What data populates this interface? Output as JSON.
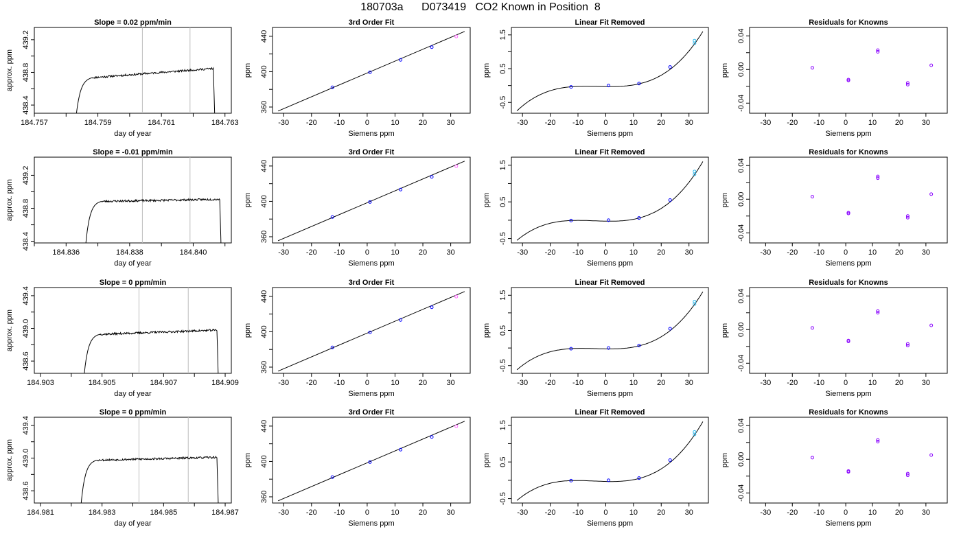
{
  "title": "180703a      D073419   CO2 Known in Position  8",
  "colors": {
    "blue": "#0000ff",
    "cyan": "#33bbee",
    "purple": "#8800ff",
    "magenta": "#ff66ff",
    "grey": "#bbbbbb",
    "line": "#000000"
  },
  "chart_data": [
    {
      "type": "line",
      "panel": "time",
      "row": 0,
      "title": "Slope =  0.02  ppm/min",
      "xlabel": "day of year",
      "ylabel": "approx. ppm",
      "xlim": [
        184.757,
        184.7632
      ],
      "ylim": [
        438.3,
        439.35
      ],
      "xticks": [
        184.757,
        184.758,
        184.759,
        184.76,
        184.761,
        184.762,
        184.763
      ],
      "xtick_labels": [
        "184.757",
        "",
        "184.759",
        "",
        "184.761",
        "",
        "184.763"
      ],
      "yticks": [
        438.4,
        438.6,
        438.8,
        439.0,
        439.2
      ],
      "ytick_labels": [
        "438.4",
        "",
        "438.8",
        "",
        "439.2"
      ],
      "vlines": [
        184.7604,
        184.7619
      ],
      "trace": {
        "start": 184.7583,
        "end": 184.7627,
        "plateau_start": 438.72,
        "plateau_end": 438.85,
        "noise": 0.012,
        "seed": 11
      }
    },
    {
      "type": "line",
      "panel": "time",
      "row": 1,
      "title": "Slope =  -0.01  ppm/min",
      "xlabel": "day of year",
      "ylabel": "approx. ppm",
      "xlim": [
        184.835,
        184.8412
      ],
      "ylim": [
        438.38,
        439.42
      ],
      "xticks": [
        184.835,
        184.836,
        184.837,
        184.838,
        184.839,
        184.84,
        184.841
      ],
      "xtick_labels": [
        "",
        "184.836",
        "",
        "184.838",
        "",
        "184.840",
        ""
      ],
      "yticks": [
        438.4,
        438.6,
        438.8,
        439.0,
        439.2
      ],
      "ytick_labels": [
        "438.4",
        "",
        "438.8",
        "",
        "439.2"
      ],
      "vlines": [
        184.8384,
        184.8399
      ],
      "trace": {
        "start": 184.8366,
        "end": 184.8409,
        "plateau_start": 438.88,
        "plateau_end": 438.91,
        "noise": 0.012,
        "seed": 23
      }
    },
    {
      "type": "line",
      "panel": "time",
      "row": 2,
      "title": "Slope =  0  ppm/min",
      "xlabel": "day of year",
      "ylabel": "approx. ppm",
      "xlim": [
        184.9028,
        184.9092
      ],
      "ylim": [
        438.45,
        439.5
      ],
      "xticks": [
        184.903,
        184.904,
        184.905,
        184.906,
        184.907,
        184.908,
        184.909
      ],
      "xtick_labels": [
        "184.903",
        "",
        "184.905",
        "",
        "184.907",
        "",
        "184.909"
      ],
      "yticks": [
        438.6,
        438.8,
        439.0,
        439.2,
        439.4
      ],
      "ytick_labels": [
        "438.6",
        "",
        "439.0",
        "",
        "439.4"
      ],
      "vlines": [
        184.9062,
        184.9078
      ],
      "trace": {
        "start": 184.9044,
        "end": 184.9088,
        "plateau_start": 438.92,
        "plateau_end": 438.98,
        "noise": 0.012,
        "seed": 37
      }
    },
    {
      "type": "line",
      "panel": "time",
      "row": 3,
      "title": "Slope =  0  ppm/min",
      "xlabel": "day of year",
      "ylabel": "approx. ppm",
      "xlim": [
        184.9808,
        184.9872
      ],
      "ylim": [
        438.45,
        439.5
      ],
      "xticks": [
        184.981,
        184.982,
        184.983,
        184.984,
        184.985,
        184.986,
        184.987
      ],
      "xtick_labels": [
        "184.981",
        "",
        "184.983",
        "",
        "184.985",
        "",
        "184.987"
      ],
      "yticks": [
        438.6,
        438.8,
        439.0,
        439.2,
        439.4
      ],
      "ytick_labels": [
        "438.6",
        "",
        "439.0",
        "",
        "439.4"
      ],
      "vlines": [
        184.9842,
        184.9858
      ],
      "trace": {
        "start": 184.9823,
        "end": 184.9868,
        "plateau_start": 438.97,
        "plateau_end": 439.01,
        "noise": 0.012,
        "seed": 53
      }
    },
    {
      "type": "scatter",
      "panel": "fit",
      "row": 0,
      "title": "3rd Order Fit",
      "xlabel": "Siemens ppm",
      "ylabel": "ppm",
      "xlim": [
        -34,
        37
      ],
      "ylim": [
        353,
        450
      ],
      "xticks": [
        -30,
        -20,
        -10,
        0,
        10,
        20,
        30
      ],
      "xtick_labels": [
        "-30",
        "-20",
        "-10",
        "0",
        "10",
        "20",
        "30"
      ],
      "yticks": [
        360,
        380,
        400,
        420,
        440
      ],
      "ytick_labels": [
        "360",
        "",
        "400",
        "",
        "440"
      ],
      "line": {
        "x": [
          -32,
          35
        ],
        "y": [
          355.5,
          445.5
        ]
      },
      "points": {
        "x": [
          -12.5,
          1,
          12,
          23.2,
          32
        ],
        "y": [
          382.3,
          399.3,
          413.3,
          427.7,
          439.7
        ]
      }
    },
    {
      "type": "scatter",
      "panel": "fit",
      "row": 1,
      "title": "3rd Order Fit",
      "xlabel": "Siemens ppm",
      "ylabel": "ppm",
      "xlim": [
        -34,
        37
      ],
      "ylim": [
        353,
        450
      ],
      "xticks": [
        -30,
        -20,
        -10,
        0,
        10,
        20,
        30
      ],
      "xtick_labels": [
        "-30",
        "-20",
        "-10",
        "0",
        "10",
        "20",
        "30"
      ],
      "yticks": [
        360,
        380,
        400,
        420,
        440
      ],
      "ytick_labels": [
        "360",
        "",
        "400",
        "",
        "440"
      ],
      "line": {
        "x": [
          -32,
          35
        ],
        "y": [
          355.5,
          445.5
        ]
      },
      "points": {
        "x": [
          -12.5,
          1,
          12,
          23.2,
          32
        ],
        "y": [
          382.3,
          399.3,
          413.3,
          427.7,
          439.7
        ]
      }
    },
    {
      "type": "scatter",
      "panel": "fit",
      "row": 2,
      "title": "3rd Order Fit",
      "xlabel": "Siemens ppm",
      "ylabel": "ppm",
      "xlim": [
        -34,
        37
      ],
      "ylim": [
        353,
        450
      ],
      "xticks": [
        -30,
        -20,
        -10,
        0,
        10,
        20,
        30
      ],
      "xtick_labels": [
        "-30",
        "-20",
        "-10",
        "0",
        "10",
        "20",
        "30"
      ],
      "yticks": [
        360,
        380,
        400,
        420,
        440
      ],
      "ytick_labels": [
        "360",
        "",
        "400",
        "",
        "440"
      ],
      "line": {
        "x": [
          -32,
          35
        ],
        "y": [
          355.5,
          445.5
        ]
      },
      "points": {
        "x": [
          -12.5,
          1,
          12,
          23.2,
          32
        ],
        "y": [
          382.3,
          399.3,
          413.3,
          427.7,
          439.7
        ]
      }
    },
    {
      "type": "scatter",
      "panel": "fit",
      "row": 3,
      "title": "3rd Order Fit",
      "xlabel": "Siemens ppm",
      "ylabel": "ppm",
      "xlim": [
        -34,
        37
      ],
      "ylim": [
        353,
        450
      ],
      "xticks": [
        -30,
        -20,
        -10,
        0,
        10,
        20,
        30
      ],
      "xtick_labels": [
        "-30",
        "-20",
        "-10",
        "0",
        "10",
        "20",
        "30"
      ],
      "yticks": [
        360,
        380,
        400,
        420,
        440
      ],
      "ytick_labels": [
        "360",
        "",
        "400",
        "",
        "440"
      ],
      "line": {
        "x": [
          -32,
          35
        ],
        "y": [
          355.5,
          445.5
        ]
      },
      "points": {
        "x": [
          -12.5,
          1,
          12,
          23.2,
          32
        ],
        "y": [
          382.3,
          399.3,
          413.3,
          427.7,
          439.7
        ]
      }
    },
    {
      "type": "scatter",
      "panel": "linear",
      "row": 0,
      "title": "Linear Fit Removed",
      "xlabel": "Siemens ppm",
      "ylabel": "ppm",
      "xlim": [
        -34,
        37
      ],
      "ylim": [
        -0.82,
        1.72
      ],
      "xticks": [
        -30,
        -20,
        -10,
        0,
        10,
        20,
        30
      ],
      "xtick_labels": [
        "-30",
        "-20",
        "-10",
        "0",
        "10",
        "20",
        "30"
      ],
      "yticks": [
        -0.5,
        0,
        0.5,
        1.0,
        1.5
      ],
      "ytick_labels": [
        "-0.5",
        "",
        "0.5",
        "",
        "1.5"
      ],
      "curve": {
        "x0": -32,
        "x1": 35,
        "y0": -0.75,
        "y1": 1.6,
        "xa": -13,
        "ya": -0.04,
        "xb": 12,
        "yb": 0.05
      },
      "points": {
        "x": [
          -12.5,
          1,
          12,
          23.2,
          32,
          32
        ],
        "y": [
          -0.04,
          0.0,
          0.06,
          0.55,
          1.25,
          1.33
        ]
      }
    },
    {
      "type": "scatter",
      "panel": "linear",
      "row": 1,
      "title": "Linear Fit Removed",
      "xlabel": "Siemens ppm",
      "ylabel": "ppm",
      "xlim": [
        -34,
        37
      ],
      "ylim": [
        -0.62,
        1.72
      ],
      "xticks": [
        -30,
        -20,
        -10,
        0,
        10,
        20,
        30
      ],
      "xtick_labels": [
        "-30",
        "-20",
        "-10",
        "0",
        "10",
        "20",
        "30"
      ],
      "yticks": [
        -0.5,
        0,
        0.5,
        1.0,
        1.5
      ],
      "ytick_labels": [
        "-0.5",
        "",
        "0.5",
        "",
        "1.5"
      ],
      "curve": {
        "x0": -32,
        "x1": 35,
        "y0": -0.55,
        "y1": 1.6,
        "xa": -13,
        "ya": -0.01,
        "xb": 12,
        "yb": 0.06
      },
      "points": {
        "x": [
          -12.5,
          1,
          12,
          23.2,
          32,
          32
        ],
        "y": [
          -0.01,
          0.0,
          0.06,
          0.55,
          1.25,
          1.33
        ]
      }
    },
    {
      "type": "scatter",
      "panel": "linear",
      "row": 2,
      "title": "Linear Fit Removed",
      "xlabel": "Siemens ppm",
      "ylabel": "ppm",
      "xlim": [
        -34,
        37
      ],
      "ylim": [
        -0.72,
        1.72
      ],
      "xticks": [
        -30,
        -20,
        -10,
        0,
        10,
        20,
        30
      ],
      "xtick_labels": [
        "-30",
        "-20",
        "-10",
        "0",
        "10",
        "20",
        "30"
      ],
      "yticks": [
        -0.5,
        0,
        0.5,
        1.0,
        1.5
      ],
      "ytick_labels": [
        "-0.5",
        "",
        "0.5",
        "",
        "1.5"
      ],
      "curve": {
        "x0": -32,
        "x1": 35,
        "y0": -0.62,
        "y1": 1.6,
        "xa": -13,
        "ya": -0.02,
        "xb": 12,
        "yb": 0.06
      },
      "points": {
        "x": [
          -12.5,
          1,
          12,
          23.2,
          32,
          32
        ],
        "y": [
          -0.02,
          0.0,
          0.07,
          0.55,
          1.25,
          1.32
        ]
      }
    },
    {
      "type": "scatter",
      "panel": "linear",
      "row": 3,
      "title": "Linear Fit Removed",
      "xlabel": "Siemens ppm",
      "ylabel": "ppm",
      "xlim": [
        -34,
        37
      ],
      "ylim": [
        -0.62,
        1.72
      ],
      "xticks": [
        -30,
        -20,
        -10,
        0,
        10,
        20,
        30
      ],
      "xtick_labels": [
        "-30",
        "-20",
        "-10",
        "0",
        "10",
        "20",
        "30"
      ],
      "yticks": [
        -0.5,
        0,
        0.5,
        1.0,
        1.5
      ],
      "ytick_labels": [
        "-0.5",
        "",
        "0.5",
        "",
        "1.5"
      ],
      "curve": {
        "x0": -32,
        "x1": 35,
        "y0": -0.55,
        "y1": 1.6,
        "xa": -13,
        "ya": -0.01,
        "xb": 12,
        "yb": 0.05
      },
      "points": {
        "x": [
          -12.5,
          1,
          12,
          23.2,
          32,
          32
        ],
        "y": [
          -0.01,
          0.0,
          0.06,
          0.55,
          1.25,
          1.32
        ]
      }
    },
    {
      "type": "scatter",
      "panel": "resid",
      "row": 0,
      "title": "Residuals for Knowns",
      "xlabel": "Siemens ppm",
      "ylabel": "ppm",
      "xlim": [
        -36,
        38
      ],
      "ylim": [
        -0.052,
        0.05
      ],
      "xticks": [
        -30,
        -20,
        -10,
        0,
        10,
        20,
        30
      ],
      "xtick_labels": [
        "-30",
        "-20",
        "-10",
        "0",
        "10",
        "20",
        "30"
      ],
      "yticks": [
        -0.04,
        -0.02,
        0.0,
        0.02,
        0.04
      ],
      "ytick_labels": [
        "-0.04",
        "",
        "0.00",
        "",
        "0.04"
      ],
      "points": {
        "x": [
          -12.5,
          1,
          1,
          12,
          12,
          23.2,
          23.2,
          32
        ],
        "y": [
          0.002,
          -0.012,
          -0.013,
          0.023,
          0.021,
          -0.016,
          -0.018,
          0.005
        ]
      }
    },
    {
      "type": "scatter",
      "panel": "resid",
      "row": 1,
      "title": "Residuals for Knowns",
      "xlabel": "Siemens ppm",
      "ylabel": "ppm",
      "xlim": [
        -36,
        38
      ],
      "ylim": [
        -0.052,
        0.05
      ],
      "xticks": [
        -30,
        -20,
        -10,
        0,
        10,
        20,
        30
      ],
      "xtick_labels": [
        "-30",
        "-20",
        "-10",
        "0",
        "10",
        "20",
        "30"
      ],
      "yticks": [
        -0.04,
        -0.02,
        0.0,
        0.02,
        0.04
      ],
      "ytick_labels": [
        "-0.04",
        "",
        "0.00",
        "",
        "0.04"
      ],
      "points": {
        "x": [
          -12.5,
          1,
          1,
          12,
          12,
          23.2,
          23.2,
          32
        ],
        "y": [
          0.003,
          -0.016,
          -0.017,
          0.027,
          0.025,
          -0.02,
          -0.022,
          0.006
        ]
      }
    },
    {
      "type": "scatter",
      "panel": "resid",
      "row": 2,
      "title": "Residuals for Knowns",
      "xlabel": "Siemens ppm",
      "ylabel": "ppm",
      "xlim": [
        -36,
        38
      ],
      "ylim": [
        -0.052,
        0.05
      ],
      "xticks": [
        -30,
        -20,
        -10,
        0,
        10,
        20,
        30
      ],
      "xtick_labels": [
        "-30",
        "-20",
        "-10",
        "0",
        "10",
        "20",
        "30"
      ],
      "yticks": [
        -0.04,
        -0.02,
        0.0,
        0.02,
        0.04
      ],
      "ytick_labels": [
        "-0.04",
        "",
        "0.00",
        "",
        "0.04"
      ],
      "points": {
        "x": [
          -12.5,
          1,
          1,
          12,
          12,
          23.2,
          23.2,
          32
        ],
        "y": [
          0.002,
          -0.013,
          -0.014,
          0.022,
          0.02,
          -0.017,
          -0.019,
          0.005
        ]
      }
    },
    {
      "type": "scatter",
      "panel": "resid",
      "row": 3,
      "title": "Residuals for Knowns",
      "xlabel": "Siemens ppm",
      "ylabel": "ppm",
      "xlim": [
        -36,
        38
      ],
      "ylim": [
        -0.052,
        0.05
      ],
      "xticks": [
        -30,
        -20,
        -10,
        0,
        10,
        20,
        30
      ],
      "xtick_labels": [
        "-30",
        "-20",
        "-10",
        "0",
        "10",
        "20",
        "30"
      ],
      "yticks": [
        -0.04,
        -0.02,
        0.0,
        0.02,
        0.04
      ],
      "ytick_labels": [
        "-0.04",
        "",
        "0.00",
        "",
        "0.04"
      ],
      "points": {
        "x": [
          -12.5,
          1,
          1,
          12,
          12,
          23.2,
          23.2,
          32
        ],
        "y": [
          0.002,
          -0.014,
          -0.015,
          0.023,
          0.021,
          -0.017,
          -0.019,
          0.005
        ]
      }
    }
  ]
}
